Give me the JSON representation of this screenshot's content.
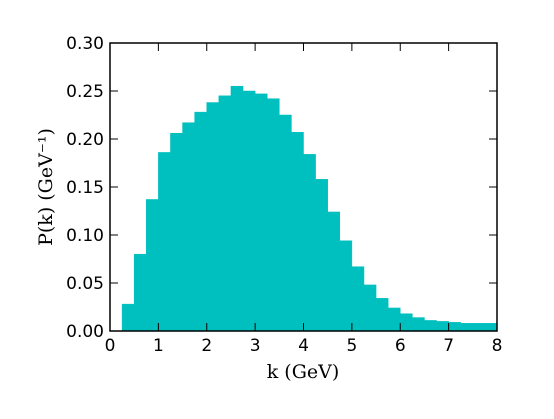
{
  "chart_data": {
    "type": "histogram",
    "xlabel": "k (GeV)",
    "ylabel": "P(k) (GeV⁻¹)",
    "bins": [
      0,
      0.25,
      0.5,
      0.75,
      1,
      1.25,
      1.5,
      1.75,
      2,
      2.25,
      2.5,
      2.75,
      3,
      3.25,
      3.5,
      3.75,
      4,
      4.25,
      4.5,
      4.75,
      5,
      5.25,
      5.5,
      5.75,
      6,
      6.25,
      6.5,
      6.75,
      7,
      7.25,
      7.5,
      7.75,
      8
    ],
    "values": [
      0,
      0.028,
      0.08,
      0.137,
      0.186,
      0.206,
      0.217,
      0.228,
      0.238,
      0.245,
      0.255,
      0.25,
      0.247,
      0.242,
      0.225,
      0.207,
      0.184,
      0.158,
      0.124,
      0.094,
      0.067,
      0.048,
      0.034,
      0.024,
      0.018,
      0.014,
      0.011,
      0.01,
      0.009,
      0.008,
      0.008,
      0.008
    ],
    "color": "#00bfbf",
    "xlim": [
      0,
      8
    ],
    "xticks": [
      0,
      1,
      2,
      3,
      4,
      5,
      6,
      7,
      8
    ],
    "ylim": [
      0,
      0.3
    ],
    "yticks": [
      {
        "value": 0,
        "label": "0.00"
      },
      {
        "value": 0.05,
        "label": "0.05"
      },
      {
        "value": 0.1,
        "label": "0.10"
      },
      {
        "value": 0.15,
        "label": "0.15"
      },
      {
        "value": 0.2,
        "label": "0.20"
      },
      {
        "value": 0.25,
        "label": "0.25"
      },
      {
        "value": 0.3,
        "label": "0.30"
      }
    ]
  }
}
